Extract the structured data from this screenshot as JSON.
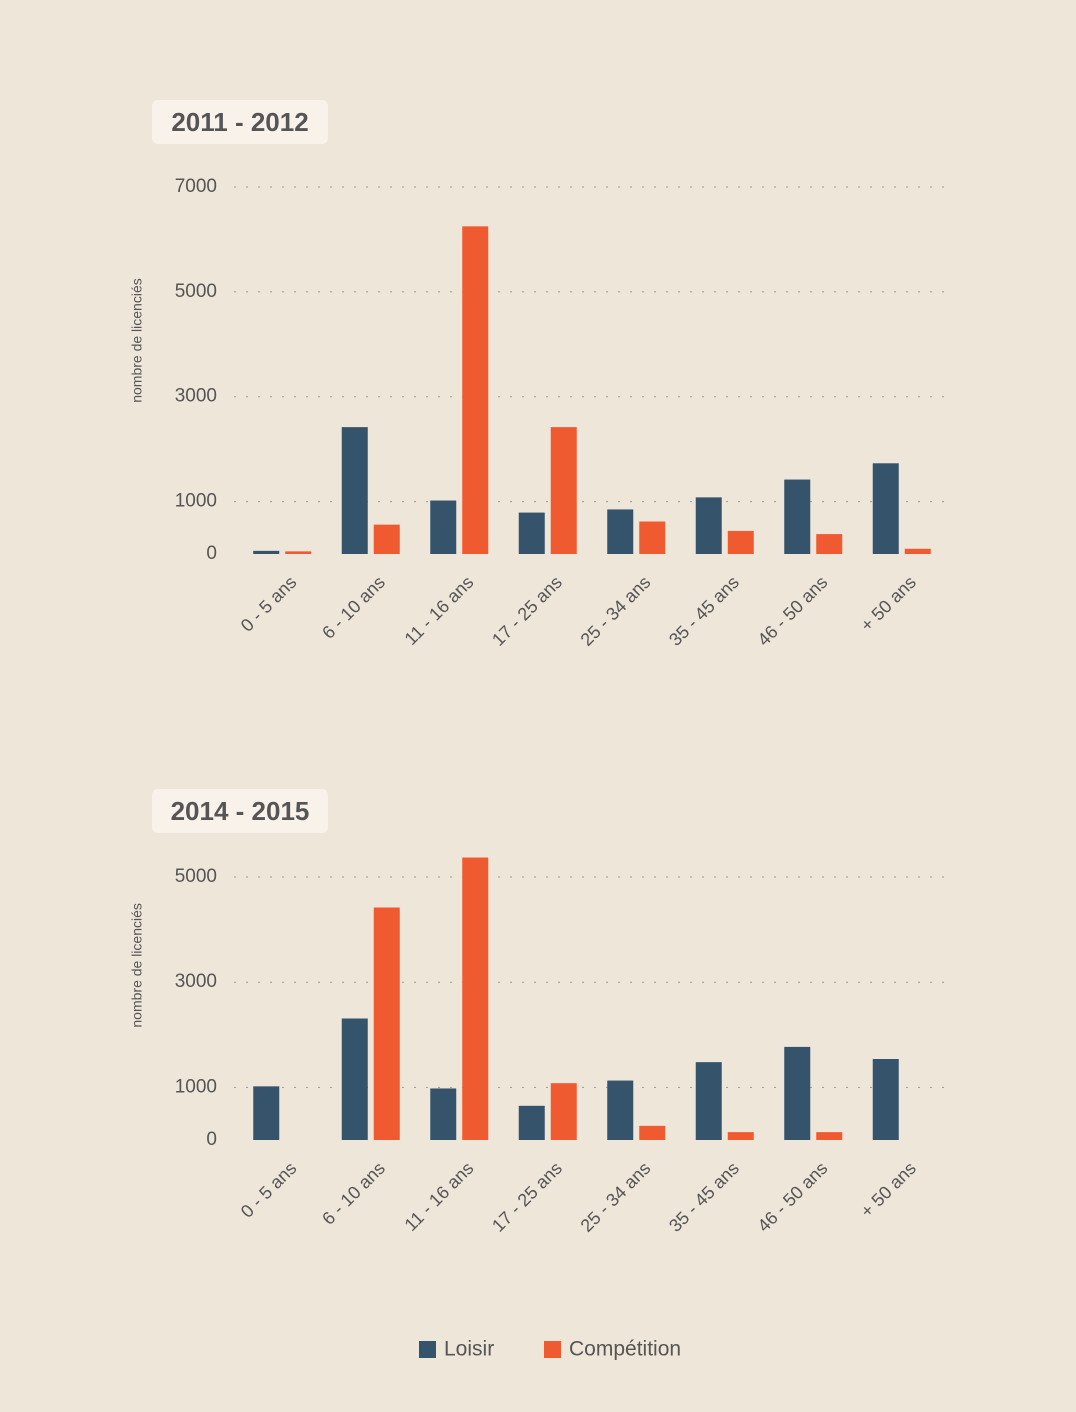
{
  "chart_data": [
    {
      "type": "bar",
      "title": "2011 - 2012",
      "y_label": "nombre de licenciés",
      "categories": [
        "0 - 5 ans",
        "6 - 10 ans",
        "11 - 16 ans",
        "17 - 25 ans",
        "25 - 34 ans",
        "35 - 45 ans",
        "46 - 50 ans",
        "+ 50 ans"
      ],
      "series": [
        {
          "name": "Loisir",
          "color": "#35536a",
          "values": [
            60,
            2420,
            1020,
            790,
            850,
            1080,
            1420,
            1730
          ]
        },
        {
          "name": "Compétition",
          "color": "#f05a30",
          "values": [
            50,
            560,
            6250,
            2420,
            620,
            440,
            380,
            100
          ]
        }
      ],
      "ylim": [
        0,
        7000
      ],
      "yticks": [
        0,
        1000,
        3000,
        5000,
        7000
      ],
      "grid": true
    },
    {
      "type": "bar",
      "title": "2014 - 2015",
      "y_label": "nombre de licenciés",
      "categories": [
        "0 - 5 ans",
        "6 - 10 ans",
        "11 - 16 ans",
        "17 - 25 ans",
        "25 - 34 ans",
        "35 - 45 ans",
        "46 - 50 ans",
        "+ 50 ans"
      ],
      "series": [
        {
          "name": "Loisir",
          "color": "#35536a",
          "values": [
            1020,
            2310,
            980,
            650,
            1130,
            1480,
            1770,
            1540
          ]
        },
        {
          "name": "Compétition",
          "color": "#f05a30",
          "values": [
            0,
            4420,
            5370,
            1080,
            270,
            150,
            150,
            0
          ]
        }
      ],
      "ylim": [
        0,
        5500
      ],
      "yticks": [
        0,
        1000,
        3000,
        5000
      ],
      "grid": true
    }
  ]
}
